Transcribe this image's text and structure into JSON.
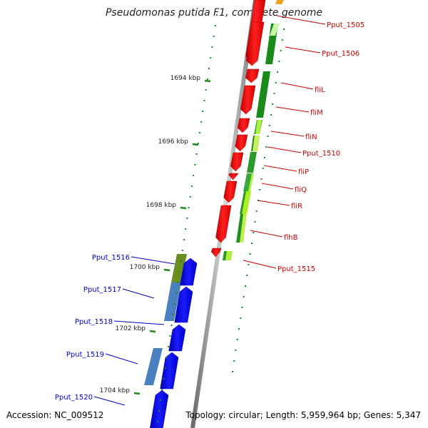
{
  "map": {
    "title": "Pseudomonas putida F1, complete genome",
    "accession": "Accession: NC_009512",
    "summary": "Topology: circular; Length: 5,959,964 bp; Genes: 5,347"
  },
  "colors": {
    "forward_cds": "#ff0000",
    "reverse_cds": "#0000ff",
    "gc_dark": "#1a8a1a",
    "gc_light": "#a8f020",
    "backbone": "#999999",
    "forward_label": "#cc0000",
    "reverse_label": "#0000cc"
  },
  "scale": {
    "unit": "kbp",
    "ticks": [
      1694,
      1696,
      1698,
      1700,
      1702,
      1704
    ]
  },
  "forward_genes": [
    "Pput_1505",
    "Pput_1506",
    "fliL",
    "fliM",
    "fliN",
    "Pput_1510",
    "fliP",
    "fliQ",
    "fliR",
    "flhB",
    "Pput_1515"
  ],
  "reverse_genes": [
    "Pput_1516",
    "Pput_1517",
    "Pput_1518",
    "Pput_1519",
    "Pput_1520"
  ]
}
